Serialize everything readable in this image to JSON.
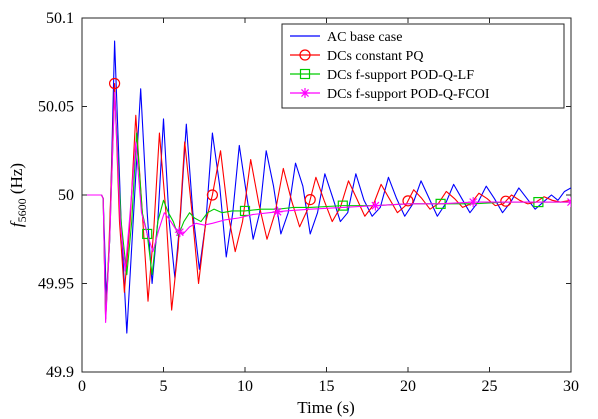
{
  "chart_data": {
    "type": "line",
    "title": "",
    "xlabel": "Time (s)",
    "ylabel": {
      "base": "f",
      "subscript": "5600",
      "suffix": " (Hz)"
    },
    "xlim": [
      0,
      30
    ],
    "ylim": [
      49.9,
      50.1
    ],
    "x_ticks": [
      0,
      5,
      10,
      15,
      20,
      25,
      30
    ],
    "y_ticks": [
      49.9,
      49.95,
      50,
      50.05,
      50.1
    ],
    "x_tick_labels": [
      "0",
      "5",
      "10",
      "15",
      "20",
      "25",
      "30"
    ],
    "y_tick_labels": [
      "49.9",
      "49.95",
      "50",
      "50.05",
      "50.1"
    ],
    "grid": false,
    "legend_position": "top-right",
    "series": [
      {
        "name": "AC base case",
        "color": "#0000ff",
        "marker": "none",
        "points": [
          [
            0,
            50.0
          ],
          [
            1.2,
            50.0
          ],
          [
            1.3,
            49.998
          ],
          [
            1.5,
            49.94
          ],
          [
            1.7,
            49.975
          ],
          [
            2.0,
            50.087
          ],
          [
            2.4,
            49.985
          ],
          [
            2.75,
            49.922
          ],
          [
            3.2,
            49.995
          ],
          [
            3.6,
            50.06
          ],
          [
            4.0,
            49.99
          ],
          [
            4.3,
            49.95
          ],
          [
            4.65,
            49.985
          ],
          [
            5.0,
            50.043
          ],
          [
            5.35,
            49.985
          ],
          [
            5.7,
            49.953
          ],
          [
            6.05,
            49.99
          ],
          [
            6.4,
            50.04
          ],
          [
            6.8,
            49.99
          ],
          [
            7.2,
            49.958
          ],
          [
            7.6,
            49.985
          ],
          [
            8.0,
            50.035
          ],
          [
            8.45,
            50.005
          ],
          [
            8.85,
            49.965
          ],
          [
            9.25,
            49.99
          ],
          [
            9.65,
            50.028
          ],
          [
            10.1,
            50.0
          ],
          [
            10.5,
            49.975
          ],
          [
            10.9,
            49.99
          ],
          [
            11.3,
            50.025
          ],
          [
            11.75,
            50.005
          ],
          [
            12.2,
            49.978
          ],
          [
            12.65,
            49.99
          ],
          [
            13.1,
            50.018
          ],
          [
            13.55,
            50.005
          ],
          [
            14.0,
            49.978
          ],
          [
            14.45,
            49.99
          ],
          [
            14.9,
            50.012
          ],
          [
            15.4,
            49.998
          ],
          [
            15.85,
            49.985
          ],
          [
            16.3,
            49.99
          ],
          [
            16.8,
            50.012
          ],
          [
            17.3,
            49.997
          ],
          [
            17.8,
            49.988
          ],
          [
            18.3,
            49.993
          ],
          [
            18.8,
            50.01
          ],
          [
            19.3,
            49.998
          ],
          [
            19.8,
            49.988
          ],
          [
            20.3,
            49.995
          ],
          [
            20.8,
            50.008
          ],
          [
            21.3,
            49.998
          ],
          [
            21.8,
            49.988
          ],
          [
            22.3,
            49.995
          ],
          [
            22.8,
            50.006
          ],
          [
            23.3,
            49.998
          ],
          [
            23.8,
            49.99
          ],
          [
            24.3,
            49.996
          ],
          [
            24.8,
            50.005
          ],
          [
            25.3,
            49.998
          ],
          [
            25.8,
            49.99
          ],
          [
            26.3,
            49.996
          ],
          [
            26.8,
            50.004
          ],
          [
            27.3,
            49.998
          ],
          [
            27.8,
            49.992
          ],
          [
            28.3,
            49.996
          ],
          [
            28.8,
            50.0
          ],
          [
            29.2,
            49.997
          ],
          [
            29.6,
            50.002
          ],
          [
            30.0,
            50.004
          ]
        ]
      },
      {
        "name": "DCs constant PQ",
        "color": "#ff0000",
        "marker": "circle",
        "marker_x": [
          2,
          8,
          14,
          20,
          26
        ],
        "points": [
          [
            0,
            50.0
          ],
          [
            1.2,
            50.0
          ],
          [
            1.3,
            49.998
          ],
          [
            1.45,
            49.93
          ],
          [
            1.65,
            49.97
          ],
          [
            2.0,
            50.063
          ],
          [
            2.3,
            49.985
          ],
          [
            2.6,
            49.945
          ],
          [
            2.95,
            49.985
          ],
          [
            3.3,
            50.045
          ],
          [
            3.7,
            49.99
          ],
          [
            4.05,
            49.94
          ],
          [
            4.4,
            49.98
          ],
          [
            4.75,
            50.035
          ],
          [
            5.15,
            49.99
          ],
          [
            5.5,
            49.935
          ],
          [
            5.9,
            49.97
          ],
          [
            6.3,
            50.03
          ],
          [
            6.75,
            49.99
          ],
          [
            7.15,
            49.95
          ],
          [
            7.6,
            49.985
          ],
          [
            8.0,
            50.0
          ],
          [
            8.5,
            50.025
          ],
          [
            8.95,
            49.99
          ],
          [
            9.4,
            49.968
          ],
          [
            9.85,
            49.985
          ],
          [
            10.35,
            50.02
          ],
          [
            10.85,
            49.995
          ],
          [
            11.35,
            49.975
          ],
          [
            11.85,
            49.99
          ],
          [
            12.35,
            50.015
          ],
          [
            12.85,
            49.997
          ],
          [
            13.35,
            49.982
          ],
          [
            13.85,
            49.992
          ],
          [
            14.35,
            50.01
          ],
          [
            14.85,
            49.997
          ],
          [
            15.35,
            49.985
          ],
          [
            15.85,
            49.993
          ],
          [
            16.35,
            50.008
          ],
          [
            16.85,
            49.998
          ],
          [
            17.35,
            49.988
          ],
          [
            17.85,
            49.994
          ],
          [
            18.35,
            50.006
          ],
          [
            18.85,
            49.998
          ],
          [
            19.35,
            49.99
          ],
          [
            19.85,
            49.994
          ],
          [
            20.35,
            50.003
          ],
          [
            20.85,
            49.998
          ],
          [
            21.35,
            49.992
          ],
          [
            21.85,
            49.995
          ],
          [
            22.35,
            50.002
          ],
          [
            22.85,
            49.998
          ],
          [
            23.35,
            49.993
          ],
          [
            23.85,
            49.995
          ],
          [
            24.35,
            50.001
          ],
          [
            24.85,
            49.998
          ],
          [
            25.35,
            49.994
          ],
          [
            25.85,
            49.995
          ],
          [
            26.35,
            50.0
          ],
          [
            26.85,
            49.997
          ],
          [
            27.35,
            49.995
          ],
          [
            27.85,
            49.996
          ],
          [
            28.35,
            49.999
          ],
          [
            28.85,
            49.997
          ],
          [
            29.35,
            49.996
          ],
          [
            30.0,
            49.997
          ]
        ]
      },
      {
        "name": "DCs f-support POD-Q-LF",
        "color": "#00cc00",
        "marker": "square",
        "marker_x": [
          4,
          10,
          16,
          22,
          28
        ],
        "points": [
          [
            0,
            50.0
          ],
          [
            1.2,
            50.0
          ],
          [
            1.3,
            49.998
          ],
          [
            1.45,
            49.93
          ],
          [
            1.7,
            49.975
          ],
          [
            2.0,
            50.058
          ],
          [
            2.4,
            49.985
          ],
          [
            2.75,
            49.955
          ],
          [
            3.05,
            49.985
          ],
          [
            3.35,
            50.035
          ],
          [
            3.7,
            49.99
          ],
          [
            4.0,
            49.978
          ],
          [
            4.3,
            49.955
          ],
          [
            4.65,
            49.985
          ],
          [
            5.0,
            49.997
          ],
          [
            5.3,
            49.99
          ],
          [
            5.6,
            49.985
          ],
          [
            5.9,
            49.977
          ],
          [
            6.25,
            49.985
          ],
          [
            6.6,
            49.99
          ],
          [
            6.9,
            49.987
          ],
          [
            7.3,
            49.985
          ],
          [
            7.7,
            49.99
          ],
          [
            8.1,
            49.992
          ],
          [
            8.6,
            49.99
          ],
          [
            9.2,
            49.991
          ],
          [
            10.0,
            49.991
          ],
          [
            11.0,
            49.992
          ],
          [
            12.0,
            49.992
          ],
          [
            13.0,
            49.993
          ],
          [
            14.0,
            49.993
          ],
          [
            16.0,
            49.994
          ],
          [
            18.0,
            49.994
          ],
          [
            20.0,
            49.995
          ],
          [
            22.0,
            49.995
          ],
          [
            24.0,
            49.995
          ],
          [
            26.0,
            49.996
          ],
          [
            28.0,
            49.996
          ],
          [
            30.0,
            49.996
          ]
        ]
      },
      {
        "name": "DCs f-support POD-Q-FCOI",
        "color": "#ff00ff",
        "marker": "asterisk",
        "marker_x": [
          6,
          12,
          18,
          24,
          30
        ],
        "points": [
          [
            0,
            50.0
          ],
          [
            1.2,
            50.0
          ],
          [
            1.3,
            49.998
          ],
          [
            1.45,
            49.928
          ],
          [
            1.7,
            49.975
          ],
          [
            2.0,
            50.058
          ],
          [
            2.35,
            49.985
          ],
          [
            2.65,
            49.957
          ],
          [
            2.95,
            49.99
          ],
          [
            3.3,
            50.03
          ],
          [
            3.65,
            49.99
          ],
          [
            4.0,
            49.978
          ],
          [
            4.35,
            49.968
          ],
          [
            4.7,
            49.98
          ],
          [
            5.05,
            49.99
          ],
          [
            5.45,
            49.985
          ],
          [
            5.8,
            49.98
          ],
          [
            6.2,
            49.978
          ],
          [
            6.6,
            49.982
          ],
          [
            7.0,
            49.984
          ],
          [
            7.5,
            49.983
          ],
          [
            8.0,
            49.984
          ],
          [
            8.8,
            49.986
          ],
          [
            9.6,
            49.987
          ],
          [
            10.5,
            49.989
          ],
          [
            11.5,
            49.99
          ],
          [
            12.5,
            49.991
          ],
          [
            14.0,
            49.992
          ],
          [
            16.0,
            49.993
          ],
          [
            18.0,
            49.994
          ],
          [
            20.0,
            49.995
          ],
          [
            22.0,
            49.995
          ],
          [
            24.0,
            49.996
          ],
          [
            26.0,
            49.996
          ],
          [
            28.0,
            49.996
          ],
          [
            30.0,
            49.996
          ]
        ]
      }
    ]
  }
}
